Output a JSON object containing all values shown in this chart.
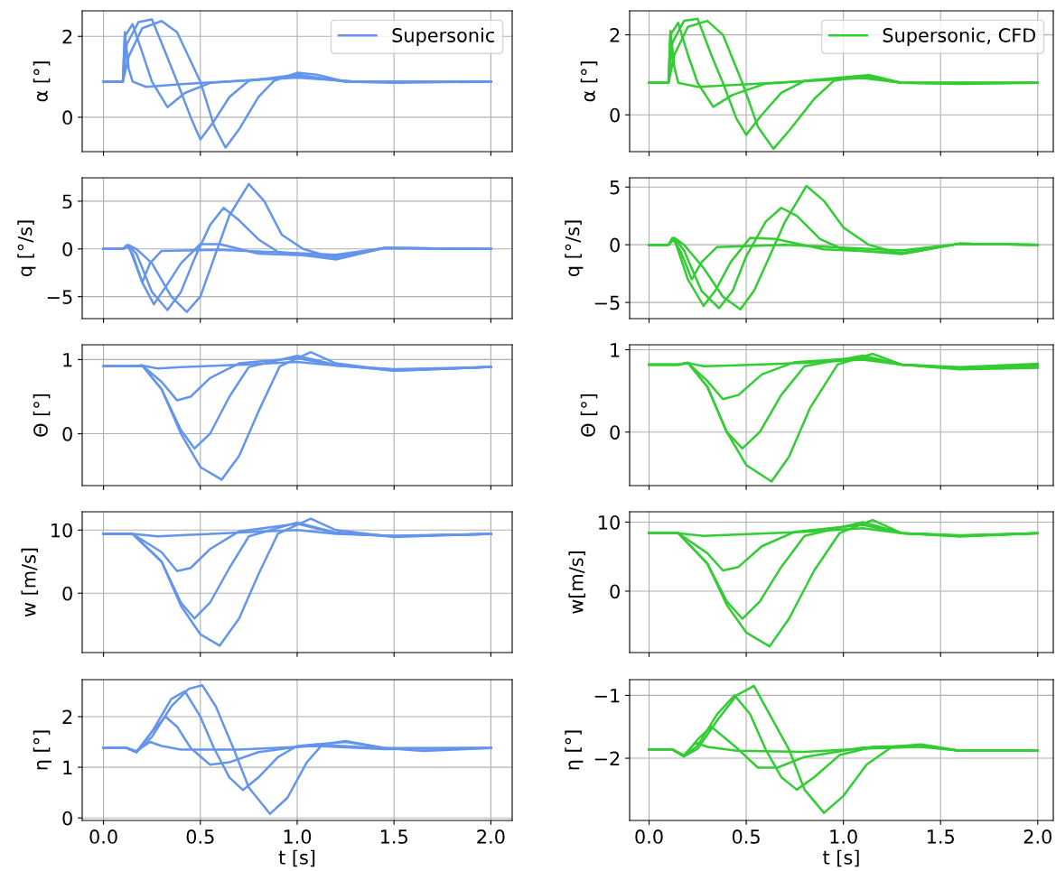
{
  "chart_data": [
    {
      "type": "line",
      "ylabel": "α [°]",
      "legend": "top right",
      "grid": true,
      "tick_labels": "y",
      "xlim": [
        -0.11,
        2.11
      ],
      "xticks": [
        {
          "value": 0,
          "label": null
        },
        {
          "value": 0.5,
          "label": null
        },
        {
          "value": 1,
          "label": null
        },
        {
          "value": 1.5,
          "label": null
        },
        {
          "value": 2,
          "label": null
        }
      ],
      "ylim": [
        -0.85,
        2.63
      ],
      "yticks": [
        0,
        2
      ],
      "series": [
        {
          "name": "Supersonic",
          "color": "#6495ed",
          "x": [
            0,
            0.1,
            0.11,
            0.13,
            0.15,
            0.22,
            0.4,
            1.0,
            1.3,
            2.0
          ],
          "values": [
            0.88,
            0.88,
            2.1,
            1.2,
            0.88,
            0.75,
            0.82,
            0.98,
            0.88,
            0.88
          ]
        },
        {
          "color": "#6495ed",
          "x": [
            0,
            0.1,
            0.11,
            0.15,
            0.2,
            0.25,
            0.33,
            0.42,
            0.55,
            1.0,
            1.3,
            2.0
          ],
          "values": [
            0.88,
            0.88,
            2.0,
            2.3,
            1.6,
            0.88,
            0.25,
            0.6,
            0.85,
            1.0,
            0.88,
            0.88
          ]
        },
        {
          "color": "#6495ed",
          "x": [
            0,
            0.1,
            0.12,
            0.18,
            0.25,
            0.32,
            0.38,
            0.45,
            0.5,
            0.57,
            0.65,
            0.75,
            1.0,
            1.25,
            2.0
          ],
          "values": [
            0.88,
            0.88,
            1.8,
            2.35,
            2.42,
            1.6,
            0.88,
            0.0,
            -0.55,
            -0.1,
            0.5,
            0.9,
            1.05,
            0.88,
            0.88
          ]
        },
        {
          "color": "#6495ed",
          "x": [
            0,
            0.1,
            0.13,
            0.2,
            0.3,
            0.38,
            0.5,
            0.57,
            0.63,
            0.7,
            0.8,
            0.88,
            1.0,
            1.1,
            1.25,
            1.5,
            2.0
          ],
          "values": [
            0.88,
            0.88,
            1.5,
            2.2,
            2.38,
            2.1,
            0.88,
            -0.2,
            -0.75,
            -0.3,
            0.5,
            0.9,
            1.1,
            1.05,
            0.88,
            0.85,
            0.88
          ]
        }
      ]
    },
    {
      "type": "line",
      "ylabel": "α [°]",
      "legend": "top right",
      "grid": true,
      "tick_labels": "y",
      "xlim": [
        -0.1,
        2.08
      ],
      "xticks": [
        {
          "value": 0,
          "label": null
        },
        {
          "value": 0.5,
          "label": null
        },
        {
          "value": 1,
          "label": null
        },
        {
          "value": 1.5,
          "label": null
        },
        {
          "value": 2,
          "label": null
        }
      ],
      "ylim": [
        -0.92,
        2.6
      ],
      "yticks": [
        0,
        2
      ],
      "series": [
        {
          "name": "Supersonic, CFD",
          "color": "#32cd32",
          "x": [
            0,
            0.1,
            0.11,
            0.13,
            0.15,
            0.25,
            0.45,
            1.1,
            1.3,
            2.0
          ],
          "values": [
            0.8,
            0.8,
            2.1,
            1.2,
            0.8,
            0.7,
            0.75,
            0.92,
            0.8,
            0.8
          ]
        },
        {
          "color": "#32cd32",
          "x": [
            0,
            0.1,
            0.11,
            0.15,
            0.2,
            0.25,
            0.33,
            0.43,
            0.6,
            1.1,
            1.3,
            2.0
          ],
          "values": [
            0.8,
            0.8,
            2.0,
            2.3,
            1.5,
            0.8,
            0.2,
            0.5,
            0.78,
            0.95,
            0.8,
            0.8
          ]
        },
        {
          "color": "#32cd32",
          "x": [
            0,
            0.1,
            0.12,
            0.18,
            0.25,
            0.32,
            0.38,
            0.45,
            0.5,
            0.58,
            0.68,
            0.8,
            1.1,
            1.3,
            2.0
          ],
          "values": [
            0.8,
            0.8,
            1.8,
            2.35,
            2.4,
            1.5,
            0.8,
            -0.1,
            -0.5,
            0.0,
            0.55,
            0.85,
            0.98,
            0.8,
            0.8
          ]
        },
        {
          "color": "#32cd32",
          "x": [
            0,
            0.1,
            0.13,
            0.2,
            0.3,
            0.38,
            0.48,
            0.56,
            0.64,
            0.72,
            0.85,
            0.95,
            1.13,
            1.3,
            1.6,
            2.0
          ],
          "values": [
            0.8,
            0.8,
            1.5,
            2.2,
            2.35,
            2.0,
            0.8,
            -0.3,
            -0.85,
            -0.4,
            0.4,
            0.85,
            1.0,
            0.8,
            0.77,
            0.8
          ]
        }
      ]
    },
    {
      "type": "line",
      "ylabel": "q [°/s]",
      "grid": true,
      "tick_labels": "y",
      "xlim": [
        -0.11,
        2.11
      ],
      "xticks": [
        {
          "value": 0,
          "label": null
        },
        {
          "value": 0.5,
          "label": null
        },
        {
          "value": 1,
          "label": null
        },
        {
          "value": 1.5,
          "label": null
        },
        {
          "value": 2,
          "label": null
        }
      ],
      "ylim": [
        -7.3,
        7.45
      ],
      "yticks": [
        {
          "value": -5,
          "label": "−5"
        },
        0,
        5
      ],
      "series": [
        {
          "color": "#6495ed",
          "x": [
            0,
            0.1,
            0.12,
            0.15,
            0.2,
            0.24,
            0.3,
            0.6,
            1.2,
            1.45,
            2.0
          ],
          "values": [
            0,
            0,
            0.4,
            -0.5,
            -3.5,
            -1.5,
            -0.2,
            -0.1,
            -0.6,
            0.1,
            0
          ]
        },
        {
          "color": "#6495ed",
          "x": [
            0,
            0.1,
            0.13,
            0.2,
            0.26,
            0.32,
            0.4,
            0.5,
            0.6,
            0.8,
            1.2,
            1.45,
            2.0
          ],
          "values": [
            0,
            0,
            0.3,
            -3.5,
            -5.8,
            -4,
            -1.5,
            0.5,
            0.5,
            -0.5,
            -0.8,
            0.1,
            0
          ]
        },
        {
          "color": "#6495ed",
          "x": [
            0,
            0.1,
            0.13,
            0.17,
            0.25,
            0.33,
            0.4,
            0.47,
            0.55,
            0.62,
            0.7,
            0.8,
            0.9,
            1.2,
            1.45,
            2.0
          ],
          "values": [
            0,
            0,
            0.4,
            -0.5,
            -4.5,
            -6.4,
            -4.5,
            -1,
            2.5,
            4.3,
            3,
            1.0,
            -0.3,
            -1.1,
            0.1,
            0
          ]
        },
        {
          "color": "#6495ed",
          "x": [
            0,
            0.1,
            0.13,
            0.17,
            0.25,
            0.35,
            0.43,
            0.5,
            0.57,
            0.65,
            0.75,
            0.83,
            0.92,
            1.03,
            1.2,
            1.45,
            2.0
          ],
          "values": [
            0,
            0,
            0.4,
            0,
            -1.5,
            -5,
            -6.6,
            -5,
            -1,
            3.5,
            6.8,
            5,
            1.5,
            0,
            -1.0,
            0.1,
            0
          ]
        }
      ]
    },
    {
      "type": "line",
      "ylabel": "q [°/s]",
      "grid": true,
      "tick_labels": "y",
      "xlim": [
        -0.1,
        2.08
      ],
      "xticks": [
        {
          "value": 0,
          "label": null
        },
        {
          "value": 0.5,
          "label": null
        },
        {
          "value": 1,
          "label": null
        },
        {
          "value": 1.5,
          "label": null
        },
        {
          "value": 2,
          "label": null
        }
      ],
      "ylim": [
        -6.4,
        5.8
      ],
      "yticks": [
        {
          "value": -5,
          "label": "−5"
        },
        0,
        5
      ],
      "series": [
        {
          "color": "#32cd32",
          "x": [
            0,
            0.1,
            0.12,
            0.16,
            0.22,
            0.27,
            0.35,
            0.7,
            1.3,
            1.6,
            2.0
          ],
          "values": [
            0,
            0,
            0.6,
            -0.5,
            -3,
            -1.5,
            -0.2,
            0,
            -0.5,
            0.1,
            0
          ]
        },
        {
          "color": "#32cd32",
          "x": [
            0,
            0.1,
            0.13,
            0.2,
            0.28,
            0.34,
            0.42,
            0.52,
            0.65,
            0.9,
            1.3,
            1.6,
            2.0
          ],
          "values": [
            0,
            0,
            0.5,
            -3,
            -5.3,
            -4,
            -1.5,
            0.6,
            0.5,
            -0.4,
            -0.7,
            0.1,
            0
          ]
        },
        {
          "color": "#32cd32",
          "x": [
            0,
            0.1,
            0.13,
            0.18,
            0.27,
            0.36,
            0.43,
            0.5,
            0.6,
            0.68,
            0.76,
            0.88,
            1.0,
            1.3,
            1.6,
            2.0
          ],
          "values": [
            0,
            0,
            0.6,
            -0.5,
            -4,
            -5.5,
            -4,
            -1,
            2,
            3.2,
            2.5,
            0.5,
            -0.4,
            -0.8,
            0.1,
            0
          ]
        },
        {
          "color": "#32cd32",
          "x": [
            0,
            0.1,
            0.13,
            0.18,
            0.28,
            0.38,
            0.47,
            0.54,
            0.62,
            0.7,
            0.81,
            0.9,
            1.0,
            1.13,
            1.3,
            1.6,
            2.0
          ],
          "values": [
            0,
            0,
            0.6,
            0,
            -2,
            -4.5,
            -5.6,
            -4,
            -1,
            2,
            5.1,
            3.8,
            1.5,
            0,
            -0.8,
            0.1,
            0
          ]
        }
      ]
    },
    {
      "type": "line",
      "ylabel": "Θ [°]",
      "grid": true,
      "tick_labels": "y",
      "xlim": [
        -0.11,
        2.11
      ],
      "xticks": [
        {
          "value": 0,
          "label": null
        },
        {
          "value": 0.5,
          "label": null
        },
        {
          "value": 1,
          "label": null
        },
        {
          "value": 1.5,
          "label": null
        },
        {
          "value": 2,
          "label": null
        }
      ],
      "ylim": [
        -0.7,
        1.2
      ],
      "yticks": [
        0,
        1
      ],
      "series": [
        {
          "color": "#6495ed",
          "x": [
            0,
            0.15,
            0.2,
            0.28,
            0.4,
            0.7,
            1.0,
            1.2,
            1.5,
            2.0
          ],
          "values": [
            0.91,
            0.91,
            0.92,
            0.88,
            0.9,
            0.93,
            0.97,
            0.92,
            0.87,
            0.9
          ]
        },
        {
          "color": "#6495ed",
          "x": [
            0,
            0.15,
            0.2,
            0.3,
            0.38,
            0.45,
            0.55,
            0.7,
            1.0,
            1.2,
            1.5,
            2.0
          ],
          "values": [
            0.91,
            0.91,
            0.92,
            0.7,
            0.45,
            0.5,
            0.75,
            0.95,
            1.02,
            0.92,
            0.86,
            0.9
          ]
        },
        {
          "color": "#6495ed",
          "x": [
            0,
            0.15,
            0.2,
            0.3,
            0.4,
            0.47,
            0.55,
            0.65,
            0.75,
            1.0,
            1.2,
            1.5,
            2.0
          ],
          "values": [
            0.91,
            0.91,
            0.92,
            0.6,
            0.05,
            -0.2,
            0.0,
            0.5,
            0.9,
            1.05,
            0.93,
            0.85,
            0.9
          ]
        },
        {
          "color": "#6495ed",
          "x": [
            0,
            0.15,
            0.2,
            0.3,
            0.4,
            0.5,
            0.61,
            0.7,
            0.8,
            0.91,
            1.07,
            1.2,
            1.5,
            2.0
          ],
          "values": [
            0.91,
            0.91,
            0.92,
            0.6,
            0.0,
            -0.45,
            -0.62,
            -0.3,
            0.3,
            0.91,
            1.1,
            0.95,
            0.85,
            0.9
          ]
        }
      ]
    },
    {
      "type": "line",
      "ylabel": "Θ [°]",
      "grid": true,
      "tick_labels": "y",
      "xlim": [
        -0.1,
        2.08
      ],
      "xticks": [
        {
          "value": 0,
          "label": null
        },
        {
          "value": 0.5,
          "label": null
        },
        {
          "value": 1,
          "label": null
        },
        {
          "value": 1.5,
          "label": null
        },
        {
          "value": 2,
          "label": null
        }
      ],
      "ylim": [
        -0.65,
        1.06
      ],
      "yticks": [
        0,
        1
      ],
      "series": [
        {
          "color": "#32cd32",
          "x": [
            0,
            0.15,
            0.2,
            0.28,
            0.45,
            0.8,
            1.1,
            1.3,
            1.6,
            2.0
          ],
          "values": [
            0.82,
            0.82,
            0.84,
            0.8,
            0.81,
            0.84,
            0.88,
            0.82,
            0.79,
            0.83
          ]
        },
        {
          "color": "#32cd32",
          "x": [
            0,
            0.15,
            0.2,
            0.3,
            0.38,
            0.46,
            0.58,
            0.75,
            1.1,
            1.3,
            1.6,
            2.0
          ],
          "values": [
            0.82,
            0.82,
            0.84,
            0.62,
            0.4,
            0.45,
            0.7,
            0.85,
            0.9,
            0.82,
            0.78,
            0.82
          ]
        },
        {
          "color": "#32cd32",
          "x": [
            0,
            0.15,
            0.2,
            0.3,
            0.4,
            0.48,
            0.57,
            0.68,
            0.8,
            1.1,
            1.3,
            1.6,
            2.0
          ],
          "values": [
            0.82,
            0.82,
            0.84,
            0.55,
            0.0,
            -0.2,
            0.0,
            0.45,
            0.8,
            0.93,
            0.82,
            0.77,
            0.8
          ]
        },
        {
          "color": "#32cd32",
          "x": [
            0,
            0.15,
            0.2,
            0.3,
            0.4,
            0.5,
            0.63,
            0.72,
            0.83,
            0.97,
            1.15,
            1.3,
            1.6,
            2.0
          ],
          "values": [
            0.82,
            0.82,
            0.84,
            0.55,
            0.0,
            -0.4,
            -0.6,
            -0.3,
            0.3,
            0.82,
            0.95,
            0.82,
            0.76,
            0.78
          ]
        }
      ]
    },
    {
      "type": "line",
      "ylabel": "w [m/s]",
      "grid": true,
      "tick_labels": "y",
      "xlim": [
        -0.11,
        2.11
      ],
      "xticks": [
        {
          "value": 0,
          "label": null
        },
        {
          "value": 0.5,
          "label": null
        },
        {
          "value": 1,
          "label": null
        },
        {
          "value": 1.5,
          "label": null
        },
        {
          "value": 2,
          "label": null
        }
      ],
      "ylim": [
        -9.4,
        12.9
      ],
      "yticks": [
        0,
        10
      ],
      "series": [
        {
          "color": "#6495ed",
          "x": [
            0,
            0.15,
            0.28,
            0.4,
            0.7,
            1.0,
            1.2,
            1.5,
            2.0
          ],
          "values": [
            9.4,
            9.4,
            9,
            9.2,
            9.6,
            10,
            9.4,
            9.1,
            9.4
          ]
        },
        {
          "color": "#6495ed",
          "x": [
            0,
            0.15,
            0.3,
            0.38,
            0.45,
            0.55,
            0.7,
            1.0,
            1.2,
            1.5,
            2.0
          ],
          "values": [
            9.4,
            9.4,
            6.5,
            3.5,
            4,
            7,
            9.8,
            11,
            9.5,
            9,
            9.4
          ]
        },
        {
          "color": "#6495ed",
          "x": [
            0,
            0.15,
            0.3,
            0.4,
            0.47,
            0.55,
            0.65,
            0.75,
            1.0,
            1.2,
            1.5,
            2.0
          ],
          "values": [
            9.4,
            9.4,
            5,
            -1.5,
            -4,
            -1.5,
            4,
            9,
            11.2,
            9.6,
            9,
            9.4
          ]
        },
        {
          "color": "#6495ed",
          "x": [
            0,
            0.15,
            0.3,
            0.4,
            0.5,
            0.6,
            0.7,
            0.8,
            0.9,
            1.07,
            1.2,
            1.5,
            2.0
          ],
          "values": [
            9.4,
            9.4,
            5,
            -2,
            -6.5,
            -8.3,
            -4,
            3,
            9.4,
            11.8,
            10,
            8.9,
            9.4
          ]
        }
      ]
    },
    {
      "type": "line",
      "ylabel": "w[m/s]",
      "grid": true,
      "tick_labels": "y",
      "xlim": [
        -0.1,
        2.08
      ],
      "xticks": [
        {
          "value": 0,
          "label": null
        },
        {
          "value": 0.5,
          "label": null
        },
        {
          "value": 1,
          "label": null
        },
        {
          "value": 1.5,
          "label": null
        },
        {
          "value": 2,
          "label": null
        }
      ],
      "ylim": [
        -8.9,
        11.5
      ],
      "yticks": [
        0,
        10
      ],
      "series": [
        {
          "color": "#32cd32",
          "x": [
            0,
            0.15,
            0.28,
            0.45,
            0.8,
            1.1,
            1.3,
            1.6,
            2.0
          ],
          "values": [
            8.4,
            8.4,
            8,
            8.2,
            8.6,
            9.1,
            8.4,
            8.1,
            8.4
          ]
        },
        {
          "color": "#32cd32",
          "x": [
            0,
            0.15,
            0.3,
            0.38,
            0.46,
            0.58,
            0.75,
            1.1,
            1.3,
            1.6,
            2.0
          ],
          "values": [
            8.4,
            8.4,
            5.5,
            3,
            3.5,
            6.5,
            8.6,
            9.6,
            8.4,
            8,
            8.4
          ]
        },
        {
          "color": "#32cd32",
          "x": [
            0,
            0.15,
            0.3,
            0.4,
            0.48,
            0.57,
            0.68,
            0.8,
            1.1,
            1.3,
            1.6,
            2.0
          ],
          "values": [
            8.4,
            8.4,
            4,
            -1.5,
            -4,
            -1.5,
            3.5,
            8,
            10,
            8.4,
            8,
            8.4
          ]
        },
        {
          "color": "#32cd32",
          "x": [
            0,
            0.15,
            0.3,
            0.4,
            0.5,
            0.62,
            0.72,
            0.85,
            0.98,
            1.15,
            1.3,
            1.6,
            2.0
          ],
          "values": [
            8.4,
            8.4,
            4,
            -2,
            -6,
            -8.0,
            -4,
            3,
            8.4,
            10.3,
            8.4,
            7.9,
            8.4
          ]
        }
      ]
    },
    {
      "type": "line",
      "ylabel": "η [°]",
      "xlabel": "t [s]",
      "grid": true,
      "xlim": [
        -0.11,
        2.11
      ],
      "xticks": [
        {
          "value": 0,
          "label": "0.0"
        },
        {
          "value": 0.5,
          "label": "0.5"
        },
        {
          "value": 1,
          "label": "1.0"
        },
        {
          "value": 1.5,
          "label": "1.5"
        },
        {
          "value": 2,
          "label": "2.0"
        }
      ],
      "ylim": [
        -0.05,
        2.73
      ],
      "yticks": [
        0,
        1,
        2
      ],
      "series": [
        {
          "color": "#6495ed",
          "x": [
            0,
            0.12,
            0.17,
            0.24,
            0.3,
            0.4,
            0.7,
            1.1,
            1.45,
            2.0
          ],
          "values": [
            1.38,
            1.38,
            1.32,
            1.5,
            1.42,
            1.35,
            1.35,
            1.42,
            1.36,
            1.38
          ]
        },
        {
          "color": "#6495ed",
          "x": [
            0,
            0.12,
            0.17,
            0.25,
            0.32,
            0.38,
            0.45,
            0.55,
            0.65,
            0.8,
            1.1,
            1.45,
            2.0
          ],
          "values": [
            1.38,
            1.38,
            1.3,
            1.7,
            2.0,
            1.8,
            1.38,
            1.05,
            1.1,
            1.3,
            1.45,
            1.37,
            1.38
          ]
        },
        {
          "color": "#6495ed",
          "x": [
            0,
            0.12,
            0.17,
            0.25,
            0.35,
            0.42,
            0.5,
            0.57,
            0.65,
            0.72,
            0.8,
            0.9,
            1.0,
            1.25,
            1.45,
            2.0
          ],
          "values": [
            1.38,
            1.38,
            1.3,
            1.7,
            2.35,
            2.5,
            2.0,
            1.38,
            0.8,
            0.55,
            0.8,
            1.2,
            1.42,
            1.5,
            1.38,
            1.38
          ]
        },
        {
          "color": "#6495ed",
          "x": [
            0,
            0.12,
            0.17,
            0.25,
            0.35,
            0.44,
            0.51,
            0.58,
            0.67,
            0.75,
            0.86,
            0.95,
            1.05,
            1.13,
            1.25,
            1.45,
            1.65,
            2.0
          ],
          "values": [
            1.38,
            1.38,
            1.3,
            1.6,
            2.2,
            2.55,
            2.62,
            2.2,
            1.38,
            0.6,
            0.08,
            0.4,
            1.1,
            1.45,
            1.52,
            1.38,
            1.32,
            1.38
          ]
        }
      ]
    },
    {
      "type": "line",
      "ylabel": "η [°]",
      "xlabel": "t [s]",
      "grid": true,
      "xlim": [
        -0.1,
        2.08
      ],
      "xticks": [
        {
          "value": 0,
          "label": "0.0"
        },
        {
          "value": 0.5,
          "label": "0.5"
        },
        {
          "value": 1,
          "label": "1.0"
        },
        {
          "value": 1.5,
          "label": "1.5"
        },
        {
          "value": 2,
          "label": "2.0"
        }
      ],
      "ylim": [
        -2.99,
        -0.75
      ],
      "yticks": [
        {
          "value": -2,
          "label": "−2"
        },
        {
          "value": -1,
          "label": "−1"
        }
      ],
      "series": [
        {
          "color": "#32cd32",
          "x": [
            0,
            0.12,
            0.18,
            0.24,
            0.3,
            0.45,
            0.8,
            1.1,
            1.4,
            1.6,
            2.0
          ],
          "values": [
            -1.86,
            -1.86,
            -1.95,
            -1.75,
            -1.82,
            -1.88,
            -1.9,
            -1.85,
            -1.82,
            -1.88,
            -1.88
          ]
        },
        {
          "color": "#32cd32",
          "x": [
            0,
            0.12,
            0.18,
            0.25,
            0.32,
            0.38,
            0.46,
            0.56,
            0.66,
            0.8,
            1.1,
            1.4,
            1.6,
            2.0
          ],
          "values": [
            -1.86,
            -1.86,
            -1.97,
            -1.7,
            -1.5,
            -1.65,
            -1.86,
            -2.15,
            -2.15,
            -1.98,
            -1.83,
            -1.8,
            -1.88,
            -1.88
          ]
        },
        {
          "color": "#32cd32",
          "x": [
            0,
            0.12,
            0.18,
            0.25,
            0.35,
            0.44,
            0.52,
            0.6,
            0.68,
            0.76,
            0.85,
            0.98,
            1.15,
            1.4,
            1.6,
            2.0
          ],
          "values": [
            -1.86,
            -1.86,
            -1.97,
            -1.8,
            -1.3,
            -1.0,
            -1.3,
            -1.86,
            -2.3,
            -2.5,
            -2.3,
            -1.95,
            -1.82,
            -1.8,
            -1.88,
            -1.88
          ]
        },
        {
          "color": "#32cd32",
          "x": [
            0,
            0.12,
            0.18,
            0.25,
            0.35,
            0.45,
            0.54,
            0.62,
            0.72,
            0.8,
            0.9,
            1.0,
            1.12,
            1.25,
            1.4,
            1.6,
            2.0
          ],
          "values": [
            -1.86,
            -1.86,
            -1.97,
            -1.85,
            -1.4,
            -1.0,
            -0.85,
            -1.3,
            -1.86,
            -2.5,
            -2.87,
            -2.6,
            -2.1,
            -1.82,
            -1.78,
            -1.88,
            -1.88
          ]
        }
      ]
    }
  ]
}
